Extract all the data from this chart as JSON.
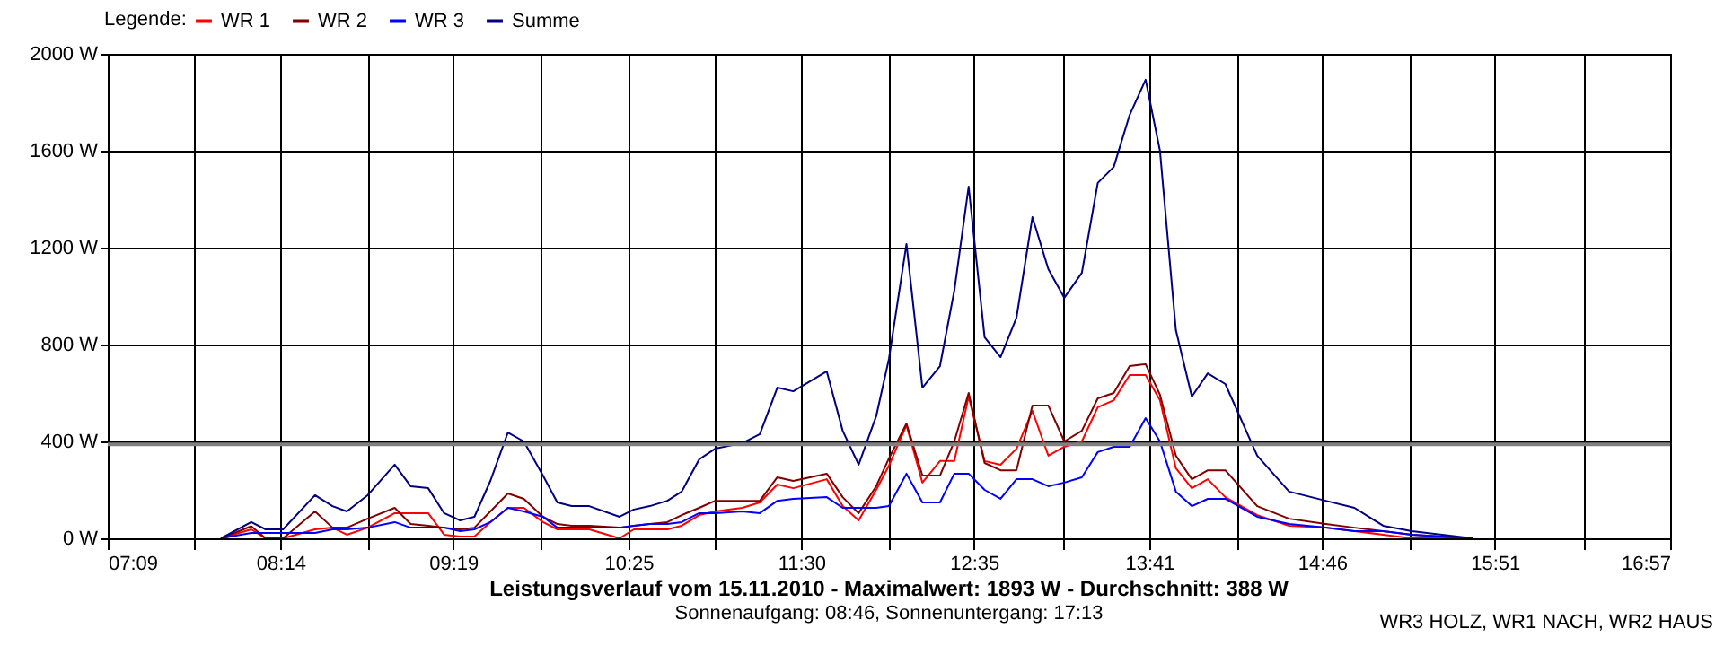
{
  "chart_data": {
    "type": "line",
    "title": "Leistungsverlauf vom 15.11.2010 - Maximalwert: 1893 W - Durchschnitt: 388 W",
    "subtitle": "Sonnenaufgang: 08:46, Sonnenuntergang: 17:13",
    "annotations": [
      "WR3 HOLZ, WR1 NACH, WR2 HAUS"
    ],
    "legend_title": "Legende:",
    "legend": "top left",
    "grid": true,
    "marker": "none",
    "line_style": "solid",
    "x": [
      7.86,
      8.05,
      8.14,
      8.25,
      8.45,
      8.56,
      8.65,
      8.78,
      8.95,
      9.05,
      9.16,
      9.26,
      9.36,
      9.45,
      9.55,
      9.66,
      9.76,
      9.88,
      9.97,
      10.06,
      10.17,
      10.36,
      10.45,
      10.55,
      10.66,
      10.75,
      10.86,
      10.96,
      11.13,
      11.24,
      11.35,
      11.45,
      11.66,
      11.76,
      11.86,
      11.97,
      12.05,
      12.16,
      12.26,
      12.37,
      12.46,
      12.55,
      12.65,
      12.75,
      12.85,
      12.95,
      13.05,
      13.15,
      13.26,
      13.36,
      13.46,
      13.56,
      13.66,
      13.75,
      13.85,
      13.95,
      14.05,
      14.16,
      14.36,
      14.56,
      14.79,
      14.97,
      15.15,
      15.33,
      15.71
    ],
    "series": [
      {
        "name": "WR 1",
        "color": "#ff0000",
        "values": [
          0,
          37,
          0,
          0,
          37,
          44,
          15,
          44,
          104,
          104,
          104,
          15,
          7,
          7,
          67,
          126,
          126,
          67,
          37,
          37,
          37,
          0,
          37,
          37,
          37,
          52,
          96,
          111,
          126,
          148,
          222,
          207,
          244,
          133,
          74,
          200,
          300,
          467,
          230,
          319,
          319,
          585,
          319,
          304,
          370,
          526,
          341,
          378,
          400,
          541,
          570,
          674,
          674,
          570,
          289,
          207,
          244,
          170,
          96,
          52,
          44,
          30,
          15,
          0,
          0
        ]
      },
      {
        "name": "WR 2",
        "color": "#800000",
        "values": [
          0,
          50,
          0,
          0,
          111,
          44,
          44,
          81,
          126,
          59,
          52,
          44,
          37,
          44,
          111,
          185,
          163,
          89,
          59,
          52,
          52,
          44,
          52,
          59,
          67,
          96,
          126,
          155,
          155,
          155,
          252,
          237,
          267,
          170,
          104,
          215,
          330,
          474,
          259,
          259,
          400,
          600,
          311,
          281,
          281,
          548,
          548,
          400,
          444,
          578,
          600,
          711,
          719,
          593,
          341,
          244,
          281,
          281,
          133,
          81,
          59,
          44,
          30,
          15,
          0
        ]
      },
      {
        "name": "WR 3",
        "color": "#0000ff",
        "values": [
          0,
          22,
          22,
          22,
          22,
          37,
          37,
          44,
          67,
          44,
          44,
          44,
          30,
          37,
          67,
          126,
          111,
          89,
          44,
          44,
          44,
          44,
          52,
          59,
          59,
          67,
          104,
          104,
          111,
          104,
          155,
          163,
          170,
          126,
          126,
          126,
          133,
          267,
          148,
          148,
          267,
          267,
          200,
          163,
          244,
          244,
          215,
          230,
          252,
          356,
          378,
          378,
          496,
          400,
          193,
          133,
          163,
          163,
          89,
          59,
          44,
          30,
          30,
          15,
          0
        ]
      },
      {
        "name": "Summe",
        "color": "#000080",
        "values": [
          0,
          67,
          37,
          37,
          178,
          133,
          111,
          178,
          304,
          215,
          207,
          104,
          74,
          89,
          237,
          437,
          400,
          259,
          148,
          133,
          133,
          89,
          119,
          133,
          155,
          193,
          326,
          370,
          393,
          430,
          622,
          607,
          689,
          444,
          304,
          504,
          741,
          1215,
          622,
          711,
          1022,
          1452,
          830,
          748,
          911,
          1326,
          1111,
          993,
          1096,
          1467,
          1533,
          1748,
          1893,
          1600,
          859,
          585,
          681,
          637,
          341,
          193,
          155,
          126,
          52,
          30,
          0
        ]
      }
    ],
    "xlim": [
      7.15,
      16.95
    ],
    "xticks": [
      {
        "value": 7.15,
        "label": "07:09"
      },
      {
        "value": 7.69,
        "label": null
      },
      {
        "value": 8.2333,
        "label": "08:14"
      },
      {
        "value": 8.78,
        "label": null
      },
      {
        "value": 9.3167,
        "label": "09:19"
      },
      {
        "value": 9.87,
        "label": null
      },
      {
        "value": 10.4167,
        "label": "10:25"
      },
      {
        "value": 10.96,
        "label": null
      },
      {
        "value": 11.5,
        "label": "11:30"
      },
      {
        "value": 12.05,
        "label": null
      },
      {
        "value": 12.5833,
        "label": "12:35"
      },
      {
        "value": 13.14,
        "label": null
      },
      {
        "value": 13.6833,
        "label": "13:41"
      },
      {
        "value": 14.23,
        "label": null
      },
      {
        "value": 14.7667,
        "label": "14:46"
      },
      {
        "value": 15.32,
        "label": null
      },
      {
        "value": 15.85,
        "label": "15:51"
      },
      {
        "value": 16.41,
        "label": null
      },
      {
        "value": 16.95,
        "label": "16:57"
      }
    ],
    "ylim": [
      0,
      2000
    ],
    "yticks": [
      {
        "value": 0,
        "label": "0 W"
      },
      {
        "value": 400,
        "label": "400 W"
      },
      {
        "value": 800,
        "label": "800 W"
      },
      {
        "value": 1200,
        "label": "1200 W"
      },
      {
        "value": 1600,
        "label": "1600 W"
      },
      {
        "value": 2000,
        "label": "2000 W"
      }
    ],
    "ref_lines": [
      {
        "axis": "y",
        "value": 388,
        "color": "#808080"
      }
    ]
  }
}
